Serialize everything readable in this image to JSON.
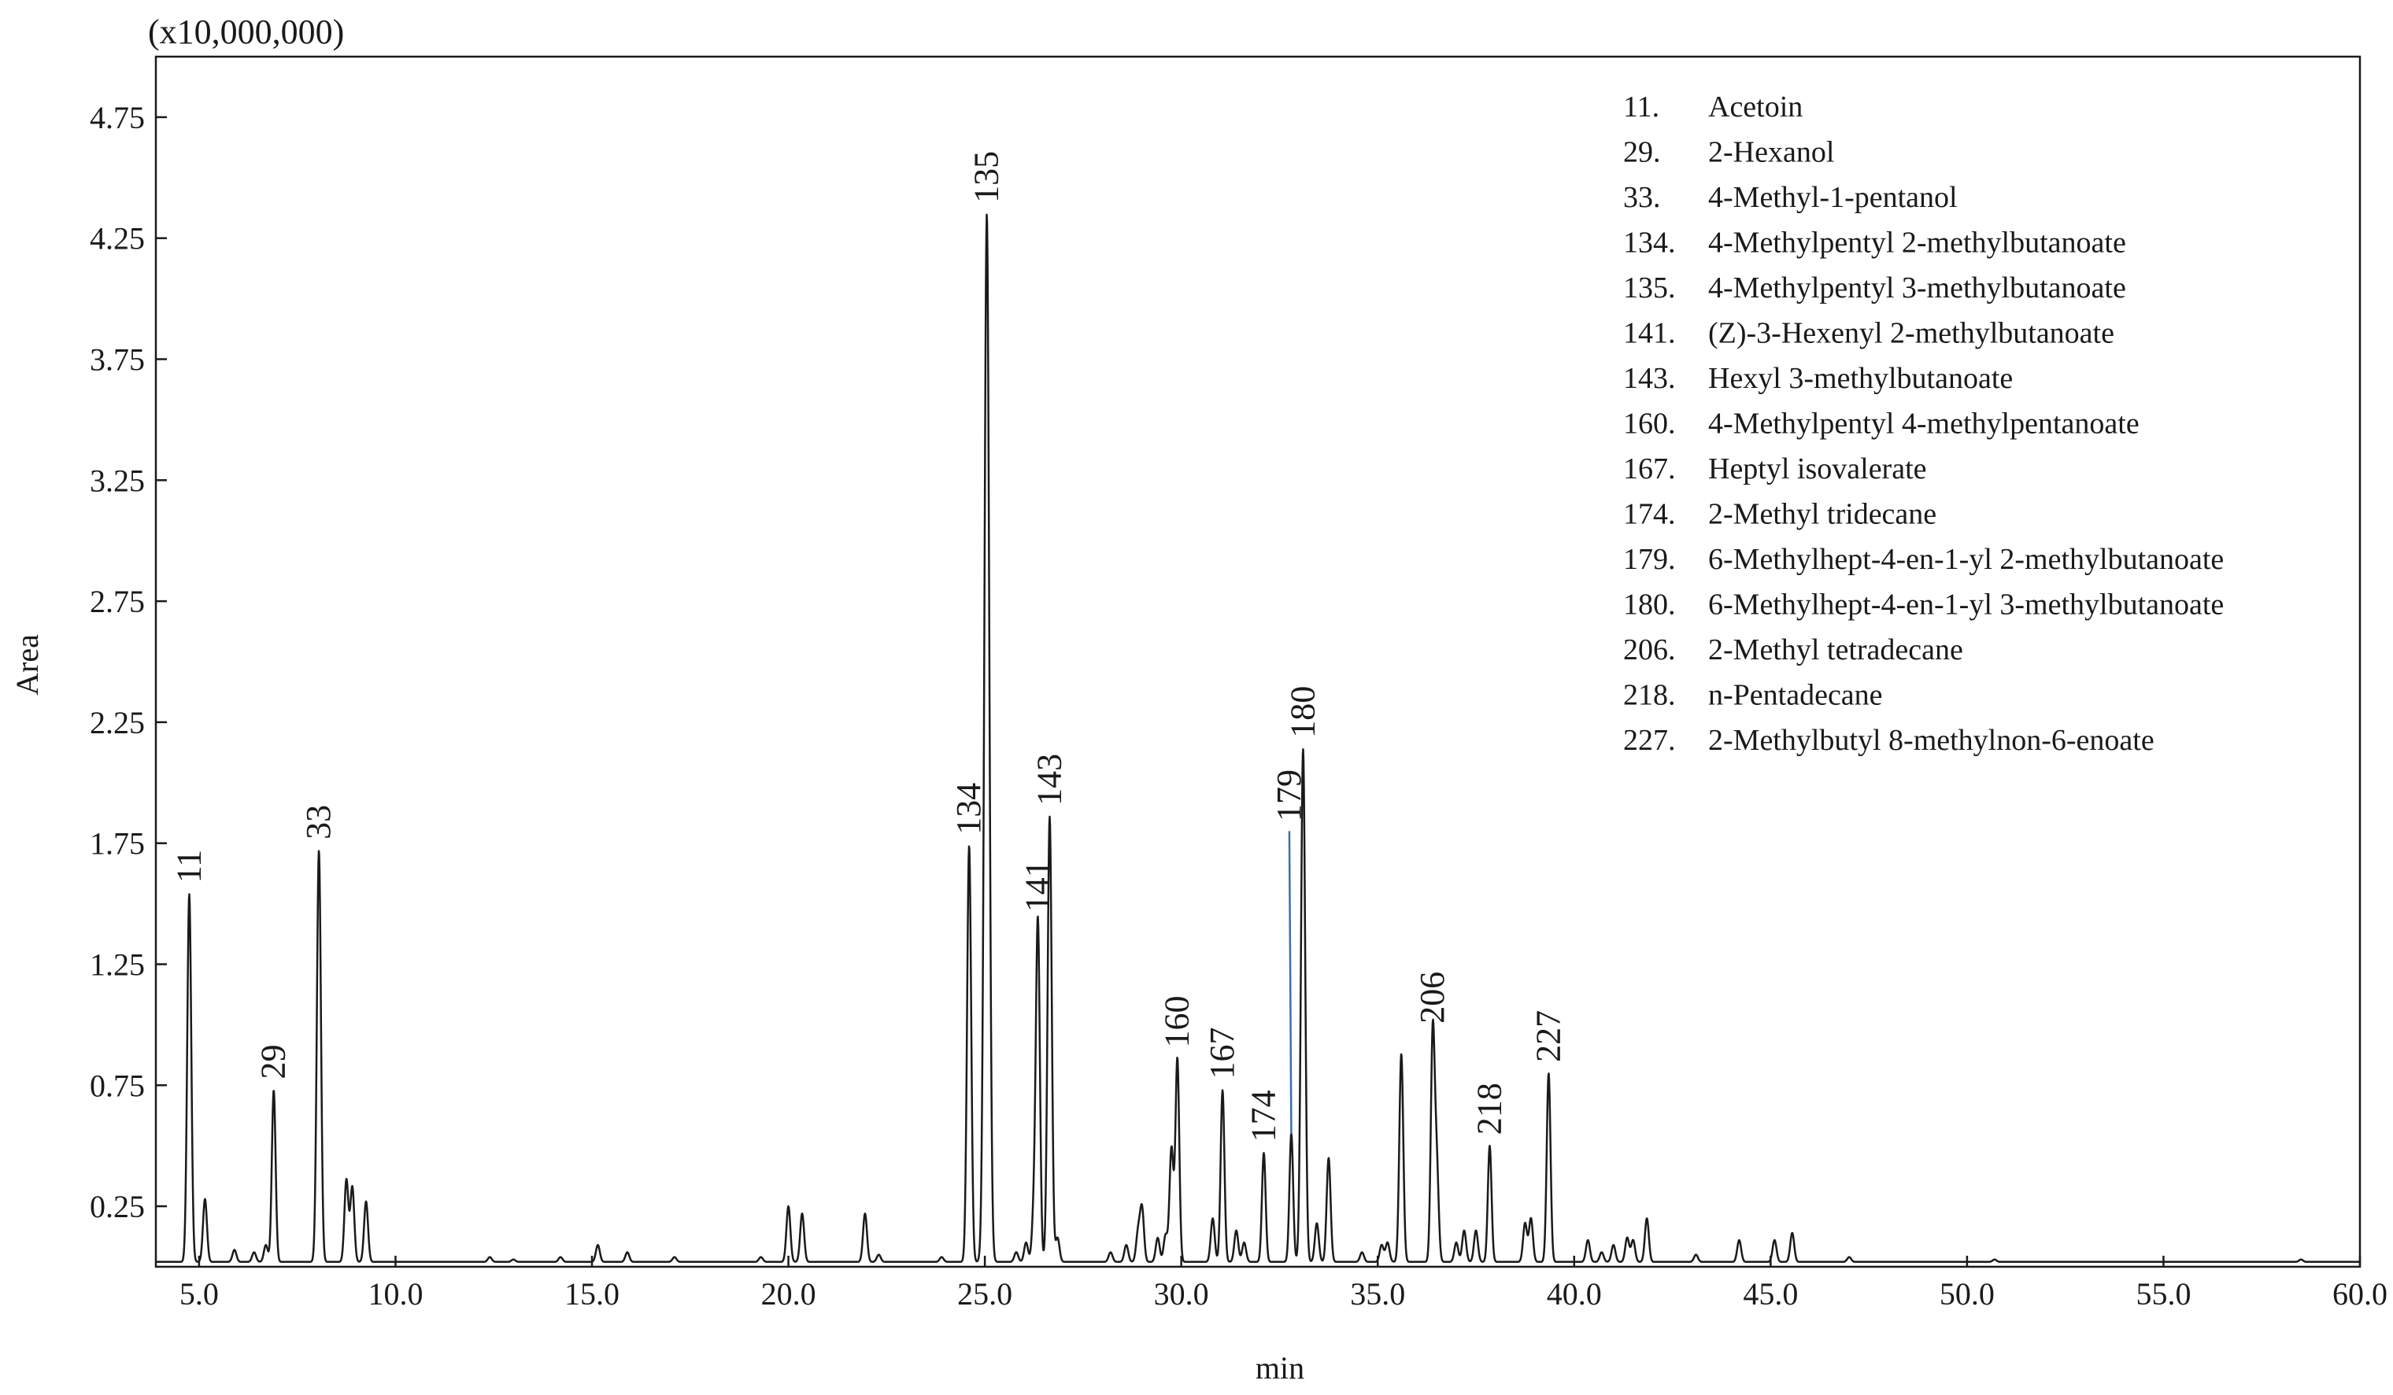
{
  "chart_data": {
    "type": "line",
    "multiplier_label": "(x10,000,000)",
    "xlabel": "min",
    "ylabel": "Area",
    "xlim": [
      3.9,
      60.0
    ],
    "ylim": [
      0,
      5.0
    ],
    "x_ticks": [
      5.0,
      10.0,
      15.0,
      20.0,
      25.0,
      30.0,
      35.0,
      40.0,
      45.0,
      50.0,
      55.0,
      60.0
    ],
    "x_tick_labels": [
      "5.0",
      "10.0",
      "15.0",
      "20.0",
      "25.0",
      "30.0",
      "35.0",
      "40.0",
      "45.0",
      "50.0",
      "55.0",
      "60.0"
    ],
    "y_ticks": [
      0.25,
      0.75,
      1.25,
      1.75,
      2.25,
      2.75,
      3.25,
      3.75,
      4.25,
      4.75
    ],
    "y_tick_labels": [
      "0.25",
      "0.75",
      "1.25",
      "1.75",
      "2.25",
      "2.75",
      "3.25",
      "3.75",
      "4.25",
      "4.75"
    ],
    "baseline": 0.02,
    "labeled_peaks": [
      {
        "label": "11",
        "x": 4.75,
        "y": 1.54
      },
      {
        "label": "29",
        "x": 6.9,
        "y": 0.73
      },
      {
        "label": "33",
        "x": 8.05,
        "y": 1.72
      },
      {
        "label": "134",
        "x": 24.6,
        "y": 1.74
      },
      {
        "label": "135",
        "x": 25.05,
        "y": 4.35
      },
      {
        "label": "141",
        "x": 26.35,
        "y": 1.42
      },
      {
        "label": "143",
        "x": 26.65,
        "y": 1.86
      },
      {
        "label": "160",
        "x": 29.9,
        "y": 0.86
      },
      {
        "label": "167",
        "x": 31.05,
        "y": 0.73
      },
      {
        "label": "174",
        "x": 32.1,
        "y": 0.47
      },
      {
        "label": "179",
        "x": 32.8,
        "y": 0.55
      },
      {
        "label": "180",
        "x": 33.1,
        "y": 2.14
      },
      {
        "label": "206",
        "x": 36.4,
        "y": 0.96
      },
      {
        "label": "218",
        "x": 37.85,
        "y": 0.5
      },
      {
        "label": "227",
        "x": 39.35,
        "y": 0.8
      }
    ],
    "minor_peaks": [
      {
        "x": 5.15,
        "y": 0.28
      },
      {
        "x": 5.9,
        "y": 0.07
      },
      {
        "x": 6.4,
        "y": 0.06
      },
      {
        "x": 6.7,
        "y": 0.09
      },
      {
        "x": 8.75,
        "y": 0.36
      },
      {
        "x": 8.9,
        "y": 0.33
      },
      {
        "x": 9.25,
        "y": 0.27
      },
      {
        "x": 12.4,
        "y": 0.04
      },
      {
        "x": 13.0,
        "y": 0.03
      },
      {
        "x": 14.2,
        "y": 0.04
      },
      {
        "x": 15.15,
        "y": 0.09
      },
      {
        "x": 15.9,
        "y": 0.06
      },
      {
        "x": 17.1,
        "y": 0.04
      },
      {
        "x": 19.3,
        "y": 0.04
      },
      {
        "x": 20.0,
        "y": 0.25
      },
      {
        "x": 20.35,
        "y": 0.22
      },
      {
        "x": 21.95,
        "y": 0.22
      },
      {
        "x": 22.3,
        "y": 0.05
      },
      {
        "x": 23.9,
        "y": 0.04
      },
      {
        "x": 25.8,
        "y": 0.06
      },
      {
        "x": 26.05,
        "y": 0.1
      },
      {
        "x": 26.25,
        "y": 0.22
      },
      {
        "x": 26.85,
        "y": 0.12
      },
      {
        "x": 28.2,
        "y": 0.06
      },
      {
        "x": 28.6,
        "y": 0.09
      },
      {
        "x": 28.9,
        "y": 0.14
      },
      {
        "x": 29.0,
        "y": 0.24
      },
      {
        "x": 29.4,
        "y": 0.12
      },
      {
        "x": 29.6,
        "y": 0.13
      },
      {
        "x": 29.75,
        "y": 0.49
      },
      {
        "x": 30.8,
        "y": 0.2
      },
      {
        "x": 31.4,
        "y": 0.15
      },
      {
        "x": 31.6,
        "y": 0.1
      },
      {
        "x": 33.45,
        "y": 0.18
      },
      {
        "x": 33.75,
        "y": 0.45
      },
      {
        "x": 34.6,
        "y": 0.06
      },
      {
        "x": 35.1,
        "y": 0.09
      },
      {
        "x": 35.25,
        "y": 0.1
      },
      {
        "x": 35.6,
        "y": 0.88
      },
      {
        "x": 36.5,
        "y": 0.42
      },
      {
        "x": 37.0,
        "y": 0.1
      },
      {
        "x": 37.2,
        "y": 0.15
      },
      {
        "x": 37.5,
        "y": 0.15
      },
      {
        "x": 38.75,
        "y": 0.18
      },
      {
        "x": 38.9,
        "y": 0.2
      },
      {
        "x": 40.35,
        "y": 0.11
      },
      {
        "x": 40.7,
        "y": 0.06
      },
      {
        "x": 41.0,
        "y": 0.09
      },
      {
        "x": 41.35,
        "y": 0.12
      },
      {
        "x": 41.5,
        "y": 0.11
      },
      {
        "x": 41.85,
        "y": 0.2
      },
      {
        "x": 43.1,
        "y": 0.05
      },
      {
        "x": 44.2,
        "y": 0.11
      },
      {
        "x": 45.1,
        "y": 0.11
      },
      {
        "x": 45.55,
        "y": 0.14
      },
      {
        "x": 47.0,
        "y": 0.04
      },
      {
        "x": 50.7,
        "y": 0.03
      },
      {
        "x": 58.5,
        "y": 0.03
      }
    ],
    "legend": [
      {
        "num": "11.",
        "name": "Acetoin"
      },
      {
        "num": "29.",
        "name": "2-Hexanol"
      },
      {
        "num": "33.",
        "name": "4-Methyl-1-pentanol"
      },
      {
        "num": "134.",
        "name": "4-Methylpentyl 2-methylbutanoate"
      },
      {
        "num": "135.",
        "name": "4-Methylpentyl 3-methylbutanoate"
      },
      {
        "num": "141.",
        "name": "(Z)-3-Hexenyl 2-methylbutanoate"
      },
      {
        "num": "143.",
        "name": "Hexyl 3-methylbutanoate"
      },
      {
        "num": "160.",
        "name": "4-Methylpentyl 4-methylpentanoate"
      },
      {
        "num": "167.",
        "name": "Heptyl isovalerate"
      },
      {
        "num": "174.",
        "name": "2-Methyl tridecane"
      },
      {
        "num": "179.",
        "name": "6-Methylhept-4-en-1-yl 2-methylbutanoate"
      },
      {
        "num": "180.",
        "name": "6-Methylhept-4-en-1-yl 3-methylbutanoate"
      },
      {
        "num": "206.",
        "name": "2-Methyl tetradecane"
      },
      {
        "num": "218.",
        "name": "n-Pentadecane"
      },
      {
        "num": "227.",
        "name": "2-Methylbutyl 8-methylnon-6-enoate"
      }
    ],
    "legend_placement": "top-right",
    "grid": false,
    "line_color": "#1a1a1a",
    "leader_line_color": "#3a6fb0"
  }
}
